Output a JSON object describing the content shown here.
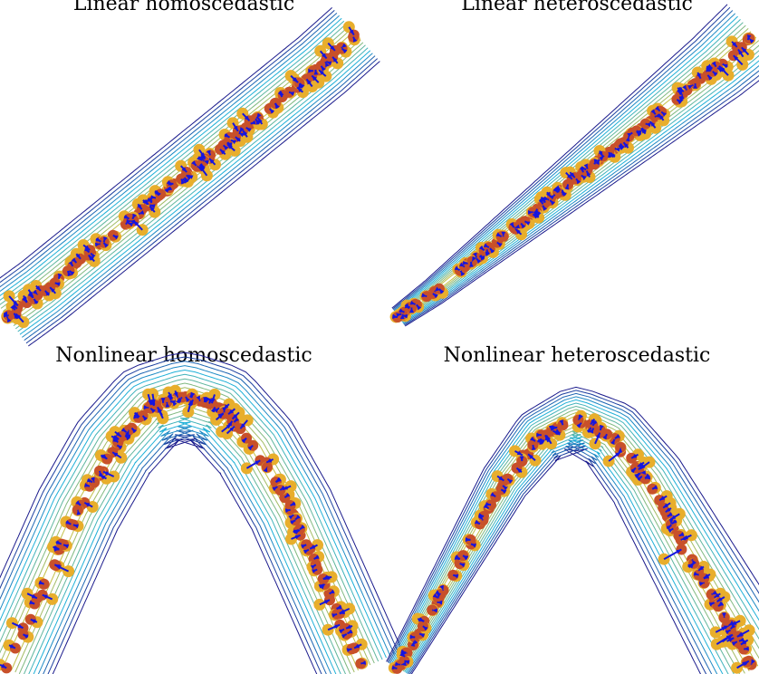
{
  "figure": {
    "titles": [
      "Linear homoscedastic",
      "Linear heteroscedastic",
      "Nonlinear homoscedastic",
      "Nonlinear heteroscedastic"
    ]
  },
  "colors": {
    "observed_point": "#e8ae2c",
    "denoised_point": "#c8502a",
    "arrow": "#1515e0",
    "contour_outer": "#1a1a8c",
    "contour_mid": "#1fb0d8",
    "contour_inner": "#e3c22a"
  },
  "chart_data": [
    {
      "type": "scatter",
      "title": "Linear homoscedastic",
      "kind": "linear",
      "noise": "homoscedastic",
      "curve_x": [
        0.0,
        0.1,
        0.2,
        0.3,
        0.4,
        0.5,
        0.6,
        0.7,
        0.8,
        0.9,
        1.0
      ],
      "curve_y": [
        0.0,
        0.09,
        0.19,
        0.29,
        0.39,
        0.49,
        0.59,
        0.69,
        0.79,
        0.89,
        1.0
      ],
      "contour_levels": 10,
      "point_count": 120,
      "grid": false,
      "legend": "none"
    },
    {
      "type": "scatter",
      "title": "Linear heteroscedastic",
      "kind": "linear",
      "noise": "heteroscedastic",
      "curve_x": [
        0.0,
        0.1,
        0.2,
        0.3,
        0.4,
        0.5,
        0.6,
        0.7,
        0.8,
        0.9,
        1.0
      ],
      "curve_y": [
        0.0,
        0.09,
        0.19,
        0.29,
        0.39,
        0.49,
        0.59,
        0.69,
        0.79,
        0.89,
        1.0
      ],
      "contour_levels": 10,
      "point_count": 120,
      "grid": false,
      "legend": "none"
    },
    {
      "type": "scatter",
      "title": "Nonlinear homoscedastic",
      "kind": "nonlinear",
      "noise": "homoscedastic",
      "curve_x": [
        0.0,
        0.1,
        0.2,
        0.3,
        0.4,
        0.5,
        0.6,
        0.7,
        0.8,
        0.9,
        1.0
      ],
      "curve_y": [
        0.0,
        0.28,
        0.56,
        0.78,
        0.92,
        0.96,
        0.92,
        0.78,
        0.56,
        0.28,
        0.0
      ],
      "contour_levels": 10,
      "point_count": 130,
      "grid": false,
      "legend": "none"
    },
    {
      "type": "scatter",
      "title": "Nonlinear heteroscedastic",
      "kind": "nonlinear",
      "noise": "heteroscedastic",
      "curve_x": [
        0.0,
        0.1,
        0.2,
        0.3,
        0.4,
        0.5,
        0.6,
        0.7,
        0.8,
        0.9,
        1.0
      ],
      "curve_y": [
        0.0,
        0.22,
        0.44,
        0.66,
        0.82,
        0.88,
        0.82,
        0.66,
        0.44,
        0.22,
        0.0
      ],
      "contour_levels": 10,
      "point_count": 130,
      "grid": false,
      "legend": "none"
    }
  ]
}
